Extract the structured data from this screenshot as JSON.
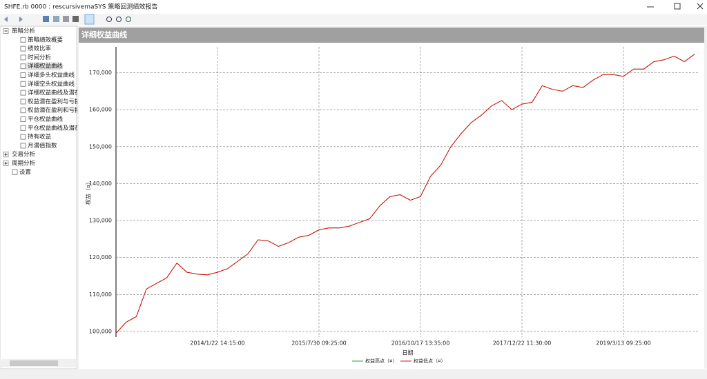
{
  "window": {
    "title": "SHFE.rb 0000 : rescursivemaSYS 策略回测绩效报告"
  },
  "tree": {
    "nodes": [
      {
        "label": "策略分析",
        "children": [
          "策略绩效概要",
          "绩效比率",
          "时间分析",
          "详细权益曲线",
          "详细多头权益曲线",
          "详细空头权益曲线",
          "详细权益曲线及潜在",
          "权益潜在盈利与亏损",
          "权益潜在盈利和亏损",
          "平仓权益曲线",
          "平仓权益曲线及潜在",
          "持有收益",
          "月潜值指数"
        ]
      },
      {
        "label": "交易分析"
      },
      {
        "label": "周期分析"
      },
      {
        "label": "设置"
      }
    ]
  },
  "chart_data": {
    "type": "line",
    "title": "详细权益曲线",
    "x_label": "日期",
    "y_label": "权益（¤）",
    "categories": [
      null,
      null,
      null,
      null,
      null,
      null,
      null,
      null,
      null,
      null,
      "2014/1/22 14:15:00",
      null,
      null,
      null,
      null,
      null,
      null,
      null,
      null,
      null,
      "2015/7/30 09:25:00",
      null,
      null,
      null,
      null,
      null,
      null,
      null,
      null,
      null,
      "2016/10/17 13:35:00",
      null,
      null,
      null,
      null,
      null,
      null,
      null,
      null,
      null,
      "2017/12/22 11:30:00",
      null,
      null,
      null,
      null,
      null,
      null,
      null,
      null,
      null,
      "2019/3/13 09:25:00",
      null,
      null,
      null,
      null,
      null,
      null,
      null
    ],
    "series": [
      {
        "name": "权益高点（¤）",
        "color": "#2e9e2e",
        "values": [
          99500,
          102500,
          104000,
          111500,
          113000,
          114500,
          118500,
          116000,
          115500,
          115300,
          116000,
          117000,
          119000,
          121000,
          124800,
          124500,
          123000,
          124000,
          125500,
          126000,
          127500,
          128000,
          128000,
          128500,
          129500,
          130500,
          134000,
          136500,
          137000,
          135500,
          136500,
          142000,
          145000,
          150000,
          153500,
          156500,
          158500,
          161000,
          162500,
          160000,
          161500,
          162000,
          166500,
          165500,
          165000,
          166500,
          166000,
          168000,
          169500,
          169500,
          169000,
          171000,
          171000,
          173000,
          173500,
          174500,
          173000,
          175000
        ]
      },
      {
        "name": "权益低点（¤）",
        "color": "#e01010",
        "values": [
          99500,
          102500,
          104000,
          111500,
          113000,
          114500,
          118500,
          116000,
          115500,
          115300,
          116000,
          117000,
          119000,
          121000,
          124800,
          124500,
          123000,
          124000,
          125500,
          126000,
          127500,
          128000,
          128000,
          128500,
          129500,
          130500,
          134000,
          136500,
          137000,
          135500,
          136500,
          142000,
          145000,
          150000,
          153500,
          156500,
          158500,
          161000,
          162500,
          160000,
          161500,
          162000,
          166500,
          165500,
          165000,
          166500,
          166000,
          168000,
          169500,
          169500,
          169000,
          171000,
          171000,
          173000,
          173500,
          174500,
          173000,
          175000
        ]
      }
    ],
    "ylim": [
      98500,
      177000
    ],
    "yticks": [
      {
        "value": 100000,
        "label": "100,000"
      },
      {
        "value": 110000,
        "label": "110,000"
      },
      {
        "value": 120000,
        "label": "120,000"
      },
      {
        "value": 130000,
        "label": "130,000"
      },
      {
        "value": 140000,
        "label": "140,000"
      },
      {
        "value": 150000,
        "label": "150,000"
      },
      {
        "value": 160000,
        "label": "160,000"
      },
      {
        "value": 170000,
        "label": "170,000"
      }
    ],
    "grid": true
  }
}
